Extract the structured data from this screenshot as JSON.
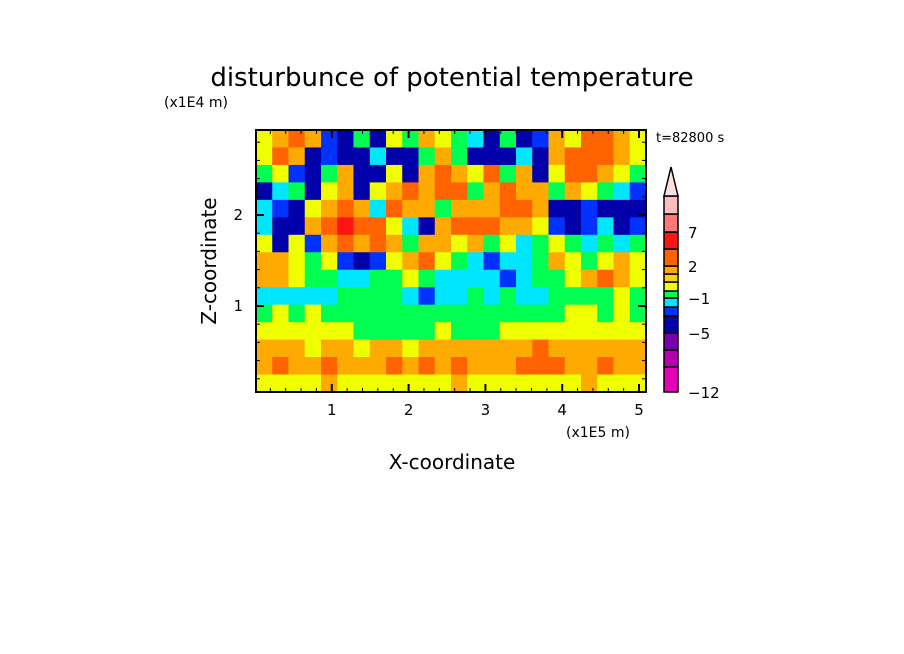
{
  "chart_data": {
    "type": "heatmap",
    "style": "filled contour",
    "title": "disturbunce of potential temperature",
    "xlabel": "X-coordinate",
    "ylabel": "Z-coordinate",
    "x_unit": "(x1E5 m)",
    "y_unit": "(x1E4 m)",
    "time_label": "t=82800 s",
    "xlim": [
      0,
      5.1
    ],
    "ylim": [
      0.05,
      2.93
    ],
    "x_ticks": [
      1,
      2,
      3,
      4,
      5
    ],
    "x_tick_labels": [
      "1",
      "2",
      "3",
      "4",
      "5"
    ],
    "y_ticks": [
      1,
      2
    ],
    "y_tick_labels": [
      "1",
      "2"
    ],
    "colorbar": {
      "levels": [
        -12,
        -10,
        -7,
        -5,
        -3,
        -2,
        -1,
        0,
        1,
        1.5,
        2,
        4.5,
        7,
        9.5,
        12
      ],
      "colors": [
        "#e600b4",
        "#b400aa",
        "#7800aa",
        "#0000aa",
        "#0032ff",
        "#00e6ff",
        "#00ff50",
        "#f0ff00",
        "#ffd200",
        "#ffaa00",
        "#ff6400",
        "#ff1414",
        "#ff7878",
        "#ffbebe"
      ],
      "extend_color": "#ffe0dc",
      "extend": "max",
      "tick_values": [
        7,
        2,
        -1,
        -5,
        -12
      ],
      "tick_labels": [
        "7",
        "2",
        "−1",
        "−5",
        "−12"
      ]
    },
    "grid_note_rows": "top to bottom (z high to low), columns left to right",
    "values": [
      [
        0.5,
        1.8,
        3,
        1.8,
        -2.5,
        -4,
        -0.5,
        -4,
        0.5,
        -0.5,
        1.8,
        0.5,
        -0.5,
        -1.5,
        -4,
        -0.5,
        -4,
        -2.5,
        1.8,
        0.5,
        3,
        3,
        1.8,
        0.5
      ],
      [
        0.5,
        3,
        1.8,
        -4,
        -2.5,
        -4,
        -4,
        -1.5,
        -4,
        -4,
        -0.5,
        1.8,
        -0.5,
        -4,
        -4,
        -4,
        -1.5,
        -4,
        1.8,
        3,
        3,
        3,
        1.8,
        0.5
      ],
      [
        -0.5,
        0.5,
        -2.5,
        -4,
        -0.5,
        1.8,
        -4,
        -4,
        0.5,
        -4,
        1.8,
        3,
        1.8,
        0.5,
        3,
        -0.5,
        1.8,
        -4,
        0.5,
        3,
        3,
        1.8,
        0.5,
        -0.5
      ],
      [
        -4,
        -1.5,
        -0.5,
        -4,
        0.5,
        1.8,
        -4,
        0.5,
        1.8,
        3,
        1.8,
        3,
        3,
        -0.5,
        1.8,
        3,
        1.8,
        1.8,
        -0.5,
        1.8,
        0.5,
        -0.5,
        -1.5,
        -2.5
      ],
      [
        -1.5,
        -2.5,
        -4,
        0.5,
        1.8,
        3,
        1.8,
        -1.5,
        3,
        1.8,
        1.8,
        -0.5,
        1.8,
        1.8,
        1.8,
        3,
        3,
        1.8,
        -4,
        -4,
        -2.5,
        -4,
        -4,
        -4
      ],
      [
        -1.5,
        -4,
        -4,
        1.8,
        3,
        5,
        3,
        3,
        0.5,
        -1.5,
        -4,
        1.8,
        3,
        3,
        3,
        1.8,
        1.8,
        0.5,
        -2.5,
        -4,
        -2.5,
        -1.5,
        -4,
        -2.5
      ],
      [
        0.5,
        -4,
        0.5,
        -2.5,
        1.8,
        3,
        1.8,
        3,
        1.8,
        -0.5,
        1.8,
        1.8,
        0.5,
        1.8,
        -0.5,
        0.5,
        -1.5,
        -0.5,
        0.5,
        -0.5,
        -1.5,
        -0.5,
        -1.5,
        -0.5
      ],
      [
        1.8,
        1.8,
        0.5,
        -0.5,
        0.5,
        -2.5,
        -4,
        -2.5,
        0.5,
        1.8,
        3,
        0.5,
        -0.5,
        -1.5,
        -2.5,
        -1.5,
        -1.5,
        -0.5,
        1.8,
        0.5,
        -0.5,
        0.5,
        1.8,
        0.5
      ],
      [
        1.8,
        1.8,
        0.5,
        -0.5,
        -0.5,
        -1.5,
        -1.5,
        -0.5,
        -0.5,
        0.5,
        -0.5,
        -1.5,
        -1.5,
        -1.5,
        -1.5,
        -2.5,
        -1.5,
        -0.5,
        -0.5,
        0.5,
        1.8,
        3,
        1.8,
        0.5
      ],
      [
        -1.5,
        -1.5,
        -1.5,
        -1.5,
        -1.5,
        -0.5,
        -0.5,
        -0.5,
        -0.5,
        -1.5,
        -2.5,
        -1.5,
        -1.5,
        -0.5,
        -1.5,
        -0.5,
        -1.5,
        -1.5,
        -0.5,
        -0.5,
        -0.5,
        -0.5,
        0.5,
        -0.5
      ],
      [
        -0.5,
        0.5,
        -0.5,
        0.5,
        -0.5,
        -0.5,
        -0.5,
        -0.5,
        -0.5,
        -0.5,
        -0.5,
        -0.5,
        -0.5,
        -0.5,
        -0.5,
        -0.5,
        -0.5,
        -0.5,
        -0.5,
        0.5,
        0.5,
        -0.5,
        0.5,
        -0.5
      ],
      [
        0.5,
        0.5,
        0.5,
        0.5,
        0.5,
        0.5,
        -0.5,
        -0.5,
        -0.5,
        -0.5,
        -0.5,
        0.5,
        -0.5,
        -0.5,
        -0.5,
        0.5,
        0.5,
        0.5,
        0.5,
        0.5,
        0.5,
        0.5,
        0.5,
        0.5
      ],
      [
        1.8,
        1.8,
        1.8,
        0.5,
        1.8,
        1.8,
        0.5,
        1.8,
        1.8,
        0.5,
        1.8,
        1.8,
        1.8,
        1.8,
        1.8,
        1.8,
        1.8,
        3,
        1.8,
        1.8,
        1.8,
        1.8,
        1.8,
        1.8
      ],
      [
        1.8,
        3,
        1.8,
        1.8,
        3,
        1.8,
        1.8,
        1.8,
        3,
        1.8,
        3,
        1.8,
        3,
        1.8,
        1.8,
        1.8,
        3,
        3,
        3,
        1.8,
        1.8,
        3,
        1.8,
        1.8
      ],
      [
        0.5,
        0.5,
        0.5,
        0.5,
        1.8,
        0.5,
        0.5,
        0.5,
        0.5,
        0.5,
        0.5,
        0.5,
        1.8,
        0.5,
        0.5,
        0.5,
        0.5,
        0.5,
        0.5,
        0.5,
        1.8,
        0.5,
        0.5,
        0.5
      ]
    ]
  }
}
